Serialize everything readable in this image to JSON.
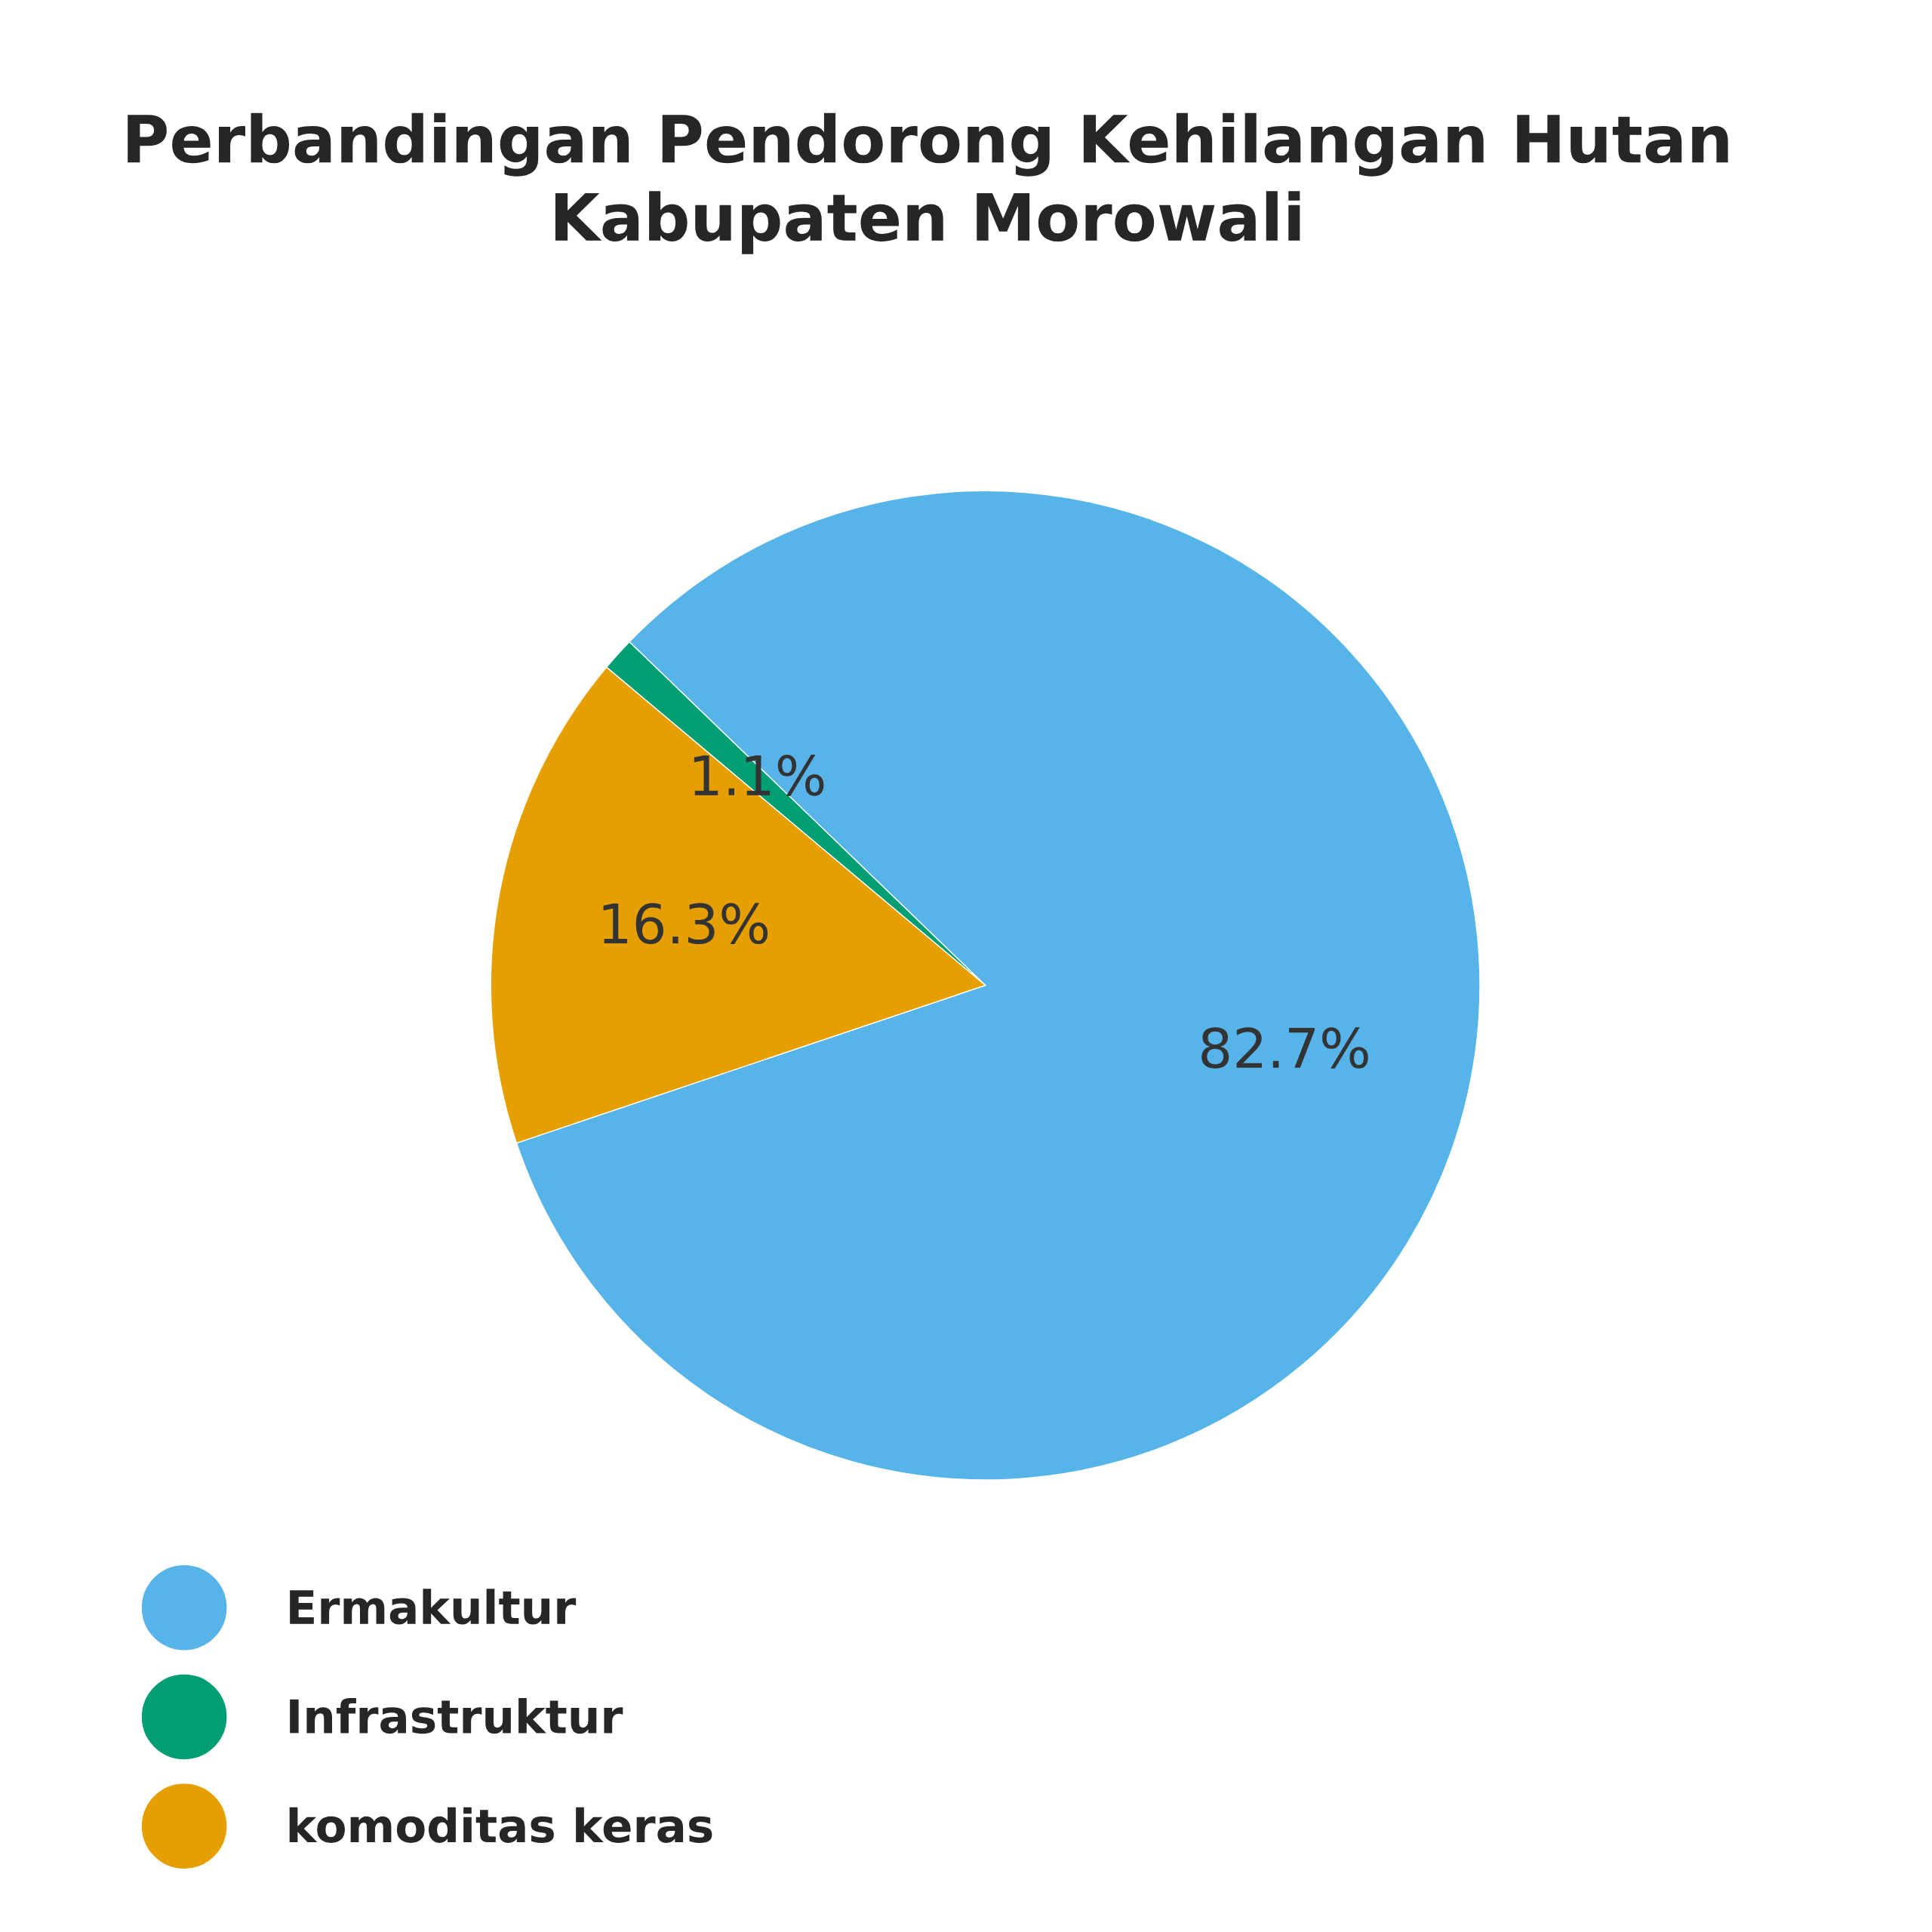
{
  "chart_data": {
    "type": "pie",
    "title": "Perbandingan Pendorong Kehilangan Hutan\nKabupaten Morowali",
    "categories": [
      "Ermakultur",
      "Infrastruktur",
      "komoditas keras"
    ],
    "values": [
      82.7,
      1.1,
      16.3
    ],
    "value_labels": [
      "82.7%",
      "1.1%",
      "16.3%"
    ],
    "colors": [
      "#56b4e9",
      "#009e73",
      "#e69f00"
    ],
    "legend": "bottom left"
  }
}
